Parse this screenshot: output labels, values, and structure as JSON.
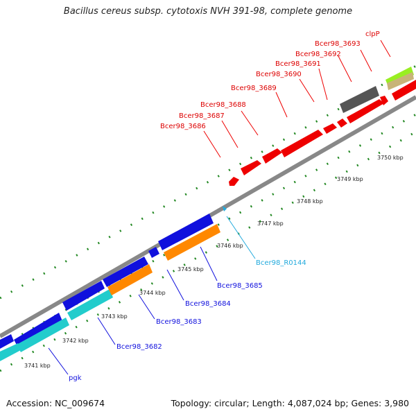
{
  "title": "Bacillus cereus subsp. cytotoxis NVH 391-98, complete genome",
  "footer": {
    "accession": "Accession: NC_009674",
    "summary": "Topology: circular; Length: 4,087,024 bp; Genes: 3,980"
  },
  "colors": {
    "reverse_cds": "#ee0000",
    "forward_cds": "#1010dd",
    "forward_aux": "#ff8800",
    "forward_aux2": "#22cccc",
    "grey_feature": "#555555",
    "lime_feature": "#99ee22",
    "tan_feature": "#c8b478",
    "backbone": "#888888",
    "ticks": "#228822",
    "rna_label": "#22aadd"
  },
  "scale_labels": [
    "3741 kbp",
    "3742 kbp",
    "3743 kbp",
    "3744 kbp",
    "3745 kbp",
    "3746 kbp",
    "3747 kbp",
    "3748 kbp",
    "3749 kbp",
    "3750 kbp"
  ],
  "gene_labels_top": [
    "clpP",
    "Bcer98_3693",
    "Bcer98_3692",
    "Bcer98_3691",
    "Bcer98_3690",
    "Bcer98_3689",
    "Bcer98_3688",
    "Bcer98_3687",
    "Bcer98_3686"
  ],
  "gene_labels_bottom": [
    "Bcer98_R0144",
    "Bcer98_3685",
    "Bcer98_3684",
    "Bcer98_3683",
    "Bcer98_3682",
    "pgk"
  ]
}
